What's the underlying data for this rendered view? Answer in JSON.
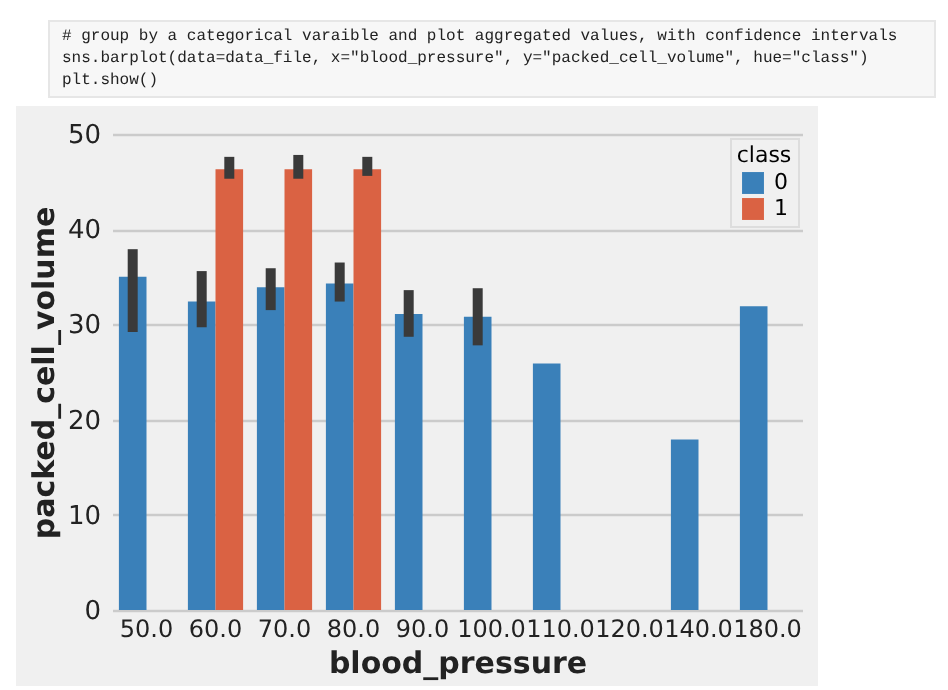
{
  "chart_data": {
    "type": "bar",
    "annotations": [
      "# group by a categorical varaible and plot aggregated values, with confidence intervals",
      "sns.barplot(data=data_file, x=\"blood_pressure\", y=\"packed_cell_volume\", hue=\"class\")",
      "plt.show()"
    ],
    "xlabel": "blood_pressure",
    "ylabel": "packed_cell_volume",
    "legend_title": "class",
    "categories": [
      "50.0",
      "60.0",
      "70.0",
      "80.0",
      "90.0",
      "100.0",
      "110.0",
      "120.0",
      "140.0",
      "180.0"
    ],
    "series": [
      {
        "name": "0",
        "color": "#3a80b9",
        "values": [
          35.0,
          32.4,
          33.9,
          34.3,
          31.1,
          30.8,
          25.9,
          null,
          17.9,
          31.9
        ],
        "errors": [
          [
            29.2,
            37.9
          ],
          [
            29.7,
            35.6
          ],
          [
            31.5,
            35.9
          ],
          [
            32.4,
            36.5
          ],
          [
            28.7,
            33.6
          ],
          [
            27.8,
            33.8
          ],
          null,
          null,
          null,
          null
        ]
      },
      {
        "name": "1",
        "color": "#da6243",
        "values": [
          null,
          46.3,
          46.3,
          46.3,
          null,
          null,
          null,
          null,
          null,
          null
        ],
        "errors": [
          null,
          [
            45.3,
            47.6
          ],
          [
            45.3,
            47.8
          ],
          [
            45.6,
            47.6
          ],
          null,
          null,
          null,
          null,
          null,
          null
        ]
      }
    ],
    "ylim": [
      0,
      50
    ],
    "yticks": [
      0,
      10,
      20,
      30,
      40,
      50
    ],
    "grid": "y",
    "legend": "top right"
  }
}
